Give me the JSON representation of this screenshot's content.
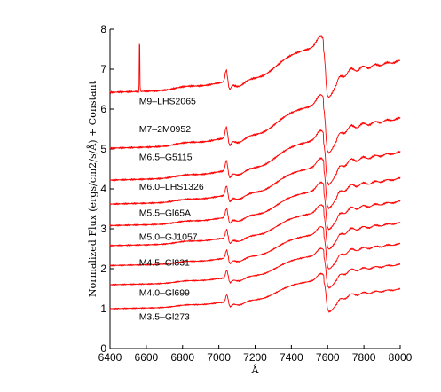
{
  "chart_data": {
    "type": "line",
    "title": "",
    "xlabel": "Å",
    "ylabel": "Normalized Flux (ergs/cm2/s/Å) + Constant",
    "xlim": [
      6400,
      8000
    ],
    "ylim": [
      0,
      8
    ],
    "xticks": [
      6400,
      6600,
      6800,
      7000,
      7200,
      7400,
      7600,
      7800,
      8000
    ],
    "yticks": [
      0,
      1,
      2,
      3,
      4,
      5,
      6,
      7,
      8
    ],
    "xtick_labels": [
      "6400",
      "6600",
      "6800",
      "7000",
      "7200",
      "7400",
      "7600",
      "7800",
      "8000"
    ],
    "ytick_labels": [
      "0",
      "1",
      "2",
      "3",
      "4",
      "5",
      "6",
      "7",
      "8"
    ],
    "grid": false,
    "legend": "none",
    "line_color": "#ff0000",
    "series": [
      {
        "name": "M3.5–Gl273",
        "label_x": 6560,
        "label_y": 0.72,
        "offset": 1.0,
        "scale": 0.55,
        "emission": 0
      },
      {
        "name": "M4.0–Gl699",
        "label_x": 6560,
        "label_y": 1.32,
        "offset": 1.6,
        "scale": 0.57,
        "emission": 0
      },
      {
        "name": "M4.5–Gl831",
        "label_x": 6560,
        "label_y": 2.08,
        "offset": 2.08,
        "scale": 0.61,
        "emission": 0
      },
      {
        "name": "M5.0–GJ1057",
        "label_x": 6560,
        "label_y": 2.72,
        "offset": 2.58,
        "scale": 0.64,
        "emission": 0
      },
      {
        "name": "M5.5–Gl65A",
        "label_x": 6560,
        "label_y": 3.32,
        "offset": 3.08,
        "scale": 0.68,
        "emission": 0
      },
      {
        "name": "M6.0–LHS1326",
        "label_x": 6560,
        "label_y": 3.98,
        "offset": 3.62,
        "scale": 0.72,
        "emission": 0
      },
      {
        "name": "M6.5–G5115",
        "label_x": 6560,
        "label_y": 4.72,
        "offset": 4.22,
        "scale": 0.78,
        "emission": 0
      },
      {
        "name": "M7–2M0952",
        "label_x": 6560,
        "label_y": 5.42,
        "offset": 5.02,
        "scale": 0.84,
        "emission": 0
      },
      {
        "name": "M9–LHS2065",
        "label_x": 6560,
        "label_y": 6.12,
        "offset": 6.42,
        "scale": 0.88,
        "emission": 1.5
      }
    ]
  }
}
